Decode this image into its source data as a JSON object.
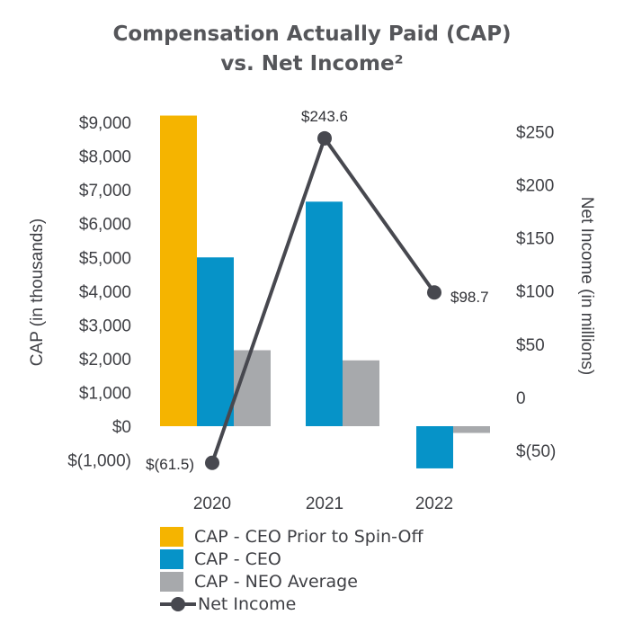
{
  "title_line1": "Compensation Actually Paid (CAP)",
  "title_line2": "vs. Net Income²",
  "chart_data": {
    "type": "bar",
    "categories": [
      "2020",
      "2021",
      "2022"
    ],
    "series": [
      {
        "name": "CAP - CEO Prior to Spin-Off",
        "color": "#f5b400",
        "values": [
          9200,
          null,
          null
        ]
      },
      {
        "name": "CAP - CEO",
        "color": "#0693c8",
        "values": [
          5000,
          6650,
          -1250
        ]
      },
      {
        "name": "CAP - NEO Average",
        "color": "#a7a9ac",
        "values": [
          2250,
          1950,
          -200
        ]
      }
    ],
    "line_series": {
      "name": "Net Income",
      "color": "#47484f",
      "axis": "right",
      "values": [
        -61.5,
        243.6,
        98.7
      ],
      "labels": [
        "$(61.5)",
        "$243.6",
        "$98.7"
      ]
    },
    "ylabel_left": "CAP (in thousands)",
    "ylabel_right": "Net Income (in millions)",
    "ylim_left": [
      -1000,
      9000
    ],
    "ylim_right": [
      -50,
      250
    ],
    "left_ticks": [
      {
        "value": 9000,
        "label": "$9,000"
      },
      {
        "value": 8000,
        "label": "$8,000"
      },
      {
        "value": 7000,
        "label": "$7,000"
      },
      {
        "value": 6000,
        "label": "$6,000"
      },
      {
        "value": 5000,
        "label": "$5,000"
      },
      {
        "value": 4000,
        "label": "$4,000"
      },
      {
        "value": 3000,
        "label": "$3,000"
      },
      {
        "value": 2000,
        "label": "$2,000"
      },
      {
        "value": 1000,
        "label": "$1,000"
      },
      {
        "value": 0,
        "label": "$0"
      },
      {
        "value": -1000,
        "label": "$(1,000)"
      }
    ],
    "right_ticks": [
      {
        "value": 250,
        "label": "$250"
      },
      {
        "value": 200,
        "label": "$200"
      },
      {
        "value": 150,
        "label": "$150"
      },
      {
        "value": 100,
        "label": "$100"
      },
      {
        "value": 50,
        "label": "$50"
      },
      {
        "value": 0,
        "label": "0"
      },
      {
        "value": -50,
        "label": "$(50)"
      }
    ],
    "grid": false,
    "legend_position": "bottom"
  },
  "legend": [
    {
      "label": "CAP - CEO Prior to Spin-Off",
      "color": "#f5b400",
      "kind": "bar"
    },
    {
      "label": "CAP - CEO",
      "color": "#0693c8",
      "kind": "bar"
    },
    {
      "label": "CAP - NEO Average",
      "color": "#a7a9ac",
      "kind": "bar"
    },
    {
      "label": "Net Income",
      "color": "#47484f",
      "kind": "line"
    }
  ]
}
